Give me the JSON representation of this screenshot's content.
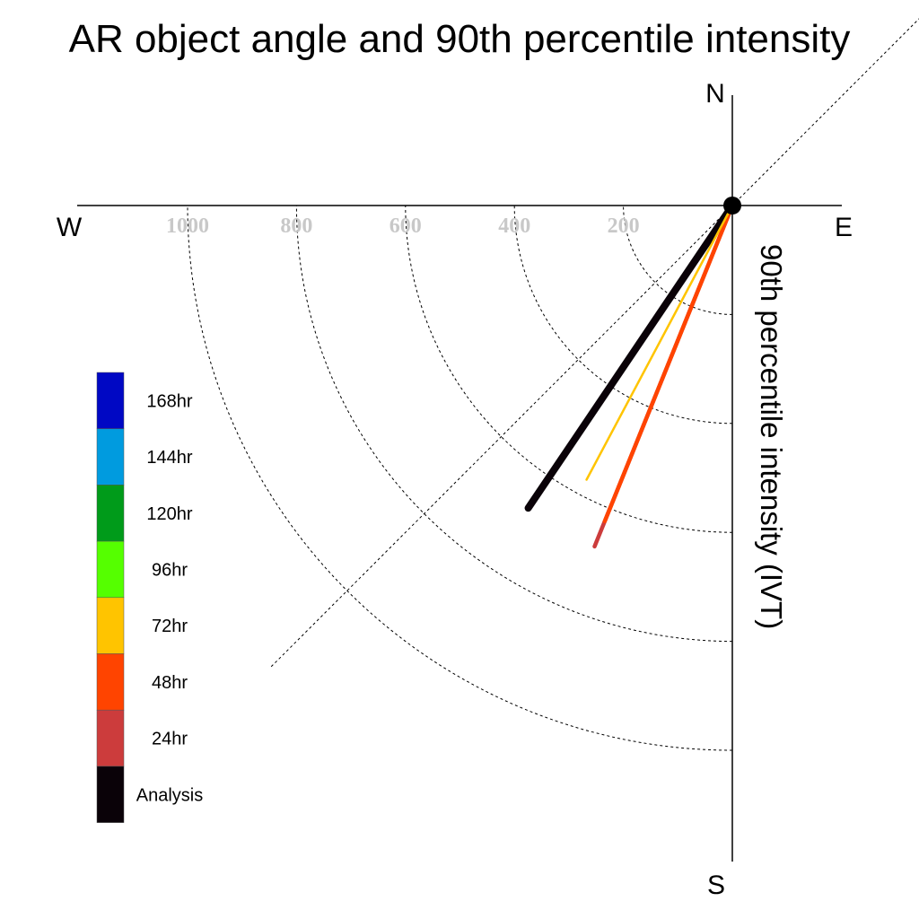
{
  "chart_data": {
    "type": "polar-line",
    "title": "AR object angle and 90th percentile intensity",
    "ylabel": "90th percentile intensity (IVT)",
    "compass": {
      "n": "N",
      "s": "S",
      "e": "E",
      "w": "W"
    },
    "radial_ticks": [
      {
        "value": 200,
        "label": "200"
      },
      {
        "value": 400,
        "label": "400"
      },
      {
        "value": 600,
        "label": "600"
      },
      {
        "value": 800,
        "label": "800"
      },
      {
        "value": 1000,
        "label": "1000"
      }
    ],
    "rlim": [
      0,
      1200
    ],
    "series": [
      {
        "name": "Analysis",
        "color": "#0a0208",
        "segments": [
          {
            "color": "#0a0208",
            "from": 0,
            "to": 670,
            "angle_deg": 214
          }
        ]
      },
      {
        "name": "24hr",
        "color": "#cc3c3c",
        "segments": [
          {
            "color": "#cc3c3c",
            "from": 0,
            "to": 675,
            "angle_deg": 202
          }
        ]
      },
      {
        "name": "48hr",
        "color": "#ff4400",
        "segments": [
          {
            "color": "#ff4400",
            "from": 0,
            "to": 625,
            "angle_deg": 202
          }
        ]
      },
      {
        "name": "72hr",
        "color": "#ffc400",
        "segments": [
          {
            "color": "#ffc400",
            "from": 0,
            "to": 570,
            "angle_deg": 208
          }
        ]
      }
    ],
    "legend": [
      {
        "label": "168hr",
        "color": "#0008c4"
      },
      {
        "label": "144hr",
        "color": "#009bdf"
      },
      {
        "label": "120hr",
        "color": "#009b1a"
      },
      {
        "label": "96hr",
        "color": "#55ff00"
      },
      {
        "label": "72hr",
        "color": "#ffc400"
      },
      {
        "label": "48hr",
        "color": "#ff4400"
      },
      {
        "label": "24hr",
        "color": "#cc3c3c"
      },
      {
        "label": "Analysis",
        "color": "#0a0208"
      }
    ],
    "grid": true,
    "legend_position": "lower-left"
  }
}
